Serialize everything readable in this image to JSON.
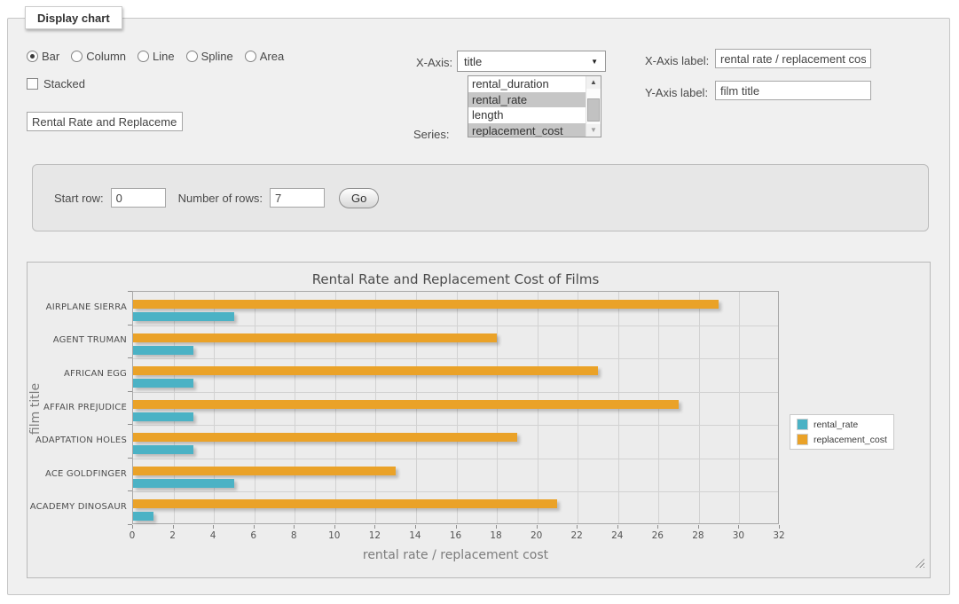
{
  "app": {
    "legend_title": "Display chart"
  },
  "controls": {
    "chart_types": [
      {
        "label": "Bar",
        "selected": true
      },
      {
        "label": "Column",
        "selected": false
      },
      {
        "label": "Line",
        "selected": false
      },
      {
        "label": "Spline",
        "selected": false
      },
      {
        "label": "Area",
        "selected": false
      }
    ],
    "stacked": {
      "label": "Stacked",
      "checked": false
    },
    "title_input_value": "Rental Rate and Replacement Cost of Films",
    "x_axis": {
      "label": "X-Axis:",
      "selected_value": "title"
    },
    "series_select": {
      "label": "Series:",
      "options": [
        {
          "label": "rental_duration",
          "selected": false
        },
        {
          "label": "rental_rate",
          "selected": true
        },
        {
          "label": "length",
          "selected": false
        },
        {
          "label": "replacement_cost",
          "selected": true
        }
      ]
    },
    "x_axis_label_field": {
      "label": "X-Axis label:",
      "value": "rental rate / replacement cost"
    },
    "y_axis_label_field": {
      "label": "Y-Axis label:",
      "value": "film title"
    }
  },
  "row_controls": {
    "start_row": {
      "label": "Start row:",
      "value": "0"
    },
    "number_of_rows": {
      "label": "Number of rows:",
      "value": "7"
    },
    "go_button_label": "Go"
  },
  "chart_data": {
    "type": "bar",
    "orientation": "horizontal",
    "title": "Rental Rate and Replacement Cost of Films",
    "categories": [
      "AIRPLANE SIERRA",
      "AGENT TRUMAN",
      "AFRICAN EGG",
      "AFFAIR PREJUDICE",
      "ADAPTATION HOLES",
      "ACE GOLDFINGER",
      "ACADEMY DINOSAUR"
    ],
    "series": [
      {
        "name": "rental_rate",
        "color": "#4bb2c5",
        "values": [
          4.99,
          2.99,
          2.99,
          2.99,
          2.99,
          4.99,
          0.99
        ]
      },
      {
        "name": "replacement_cost",
        "color": "#EAA228",
        "values": [
          28.99,
          17.99,
          22.99,
          26.99,
          18.99,
          12.99,
          20.99
        ]
      }
    ],
    "xlabel": "rental rate / replacement cost",
    "ylabel": "film title",
    "xlim": [
      0,
      32
    ],
    "xticks": [
      0,
      2,
      4,
      6,
      8,
      10,
      12,
      14,
      16,
      18,
      20,
      22,
      24,
      26,
      28,
      30,
      32
    ],
    "grid": true,
    "legend_position": "right",
    "bar_group_order_top_to_bottom": [
      "replacement_cost",
      "rental_rate"
    ]
  }
}
